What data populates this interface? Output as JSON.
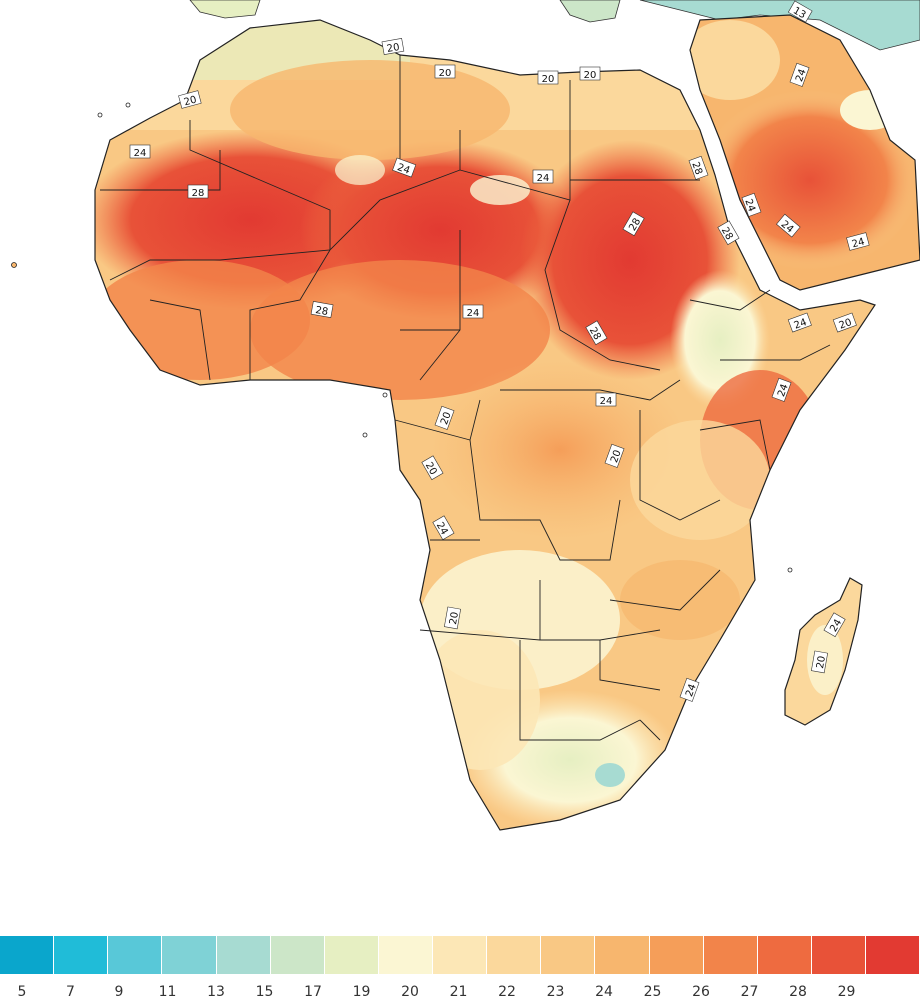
{
  "map": {
    "contour_labels": [
      "20",
      "20",
      "20",
      "20",
      "20",
      "24",
      "24",
      "28",
      "24",
      "24",
      "28",
      "28",
      "24",
      "24",
      "28",
      "28",
      "24",
      "24",
      "28",
      "24",
      "20",
      "24",
      "24",
      "20",
      "20",
      "20",
      "24",
      "20",
      "24",
      "20",
      "13",
      "24"
    ]
  },
  "legend": {
    "colors": [
      "#0aa6cc",
      "#20bcd8",
      "#58c8d8",
      "#7fd2d6",
      "#a7dbd2",
      "#cce6c8",
      "#e6efc2",
      "#fbf6d3",
      "#fce7b6",
      "#fbd89c",
      "#f9c884",
      "#f7b66e",
      "#f59e59",
      "#f2844a",
      "#ee6b40",
      "#e85238",
      "#e23a32"
    ],
    "tick_labels": [
      "5",
      "7",
      "9",
      "11",
      "13",
      "15",
      "17",
      "19",
      "20",
      "21",
      "22",
      "23",
      "24",
      "25",
      "26",
      "27",
      "28",
      "29"
    ]
  }
}
